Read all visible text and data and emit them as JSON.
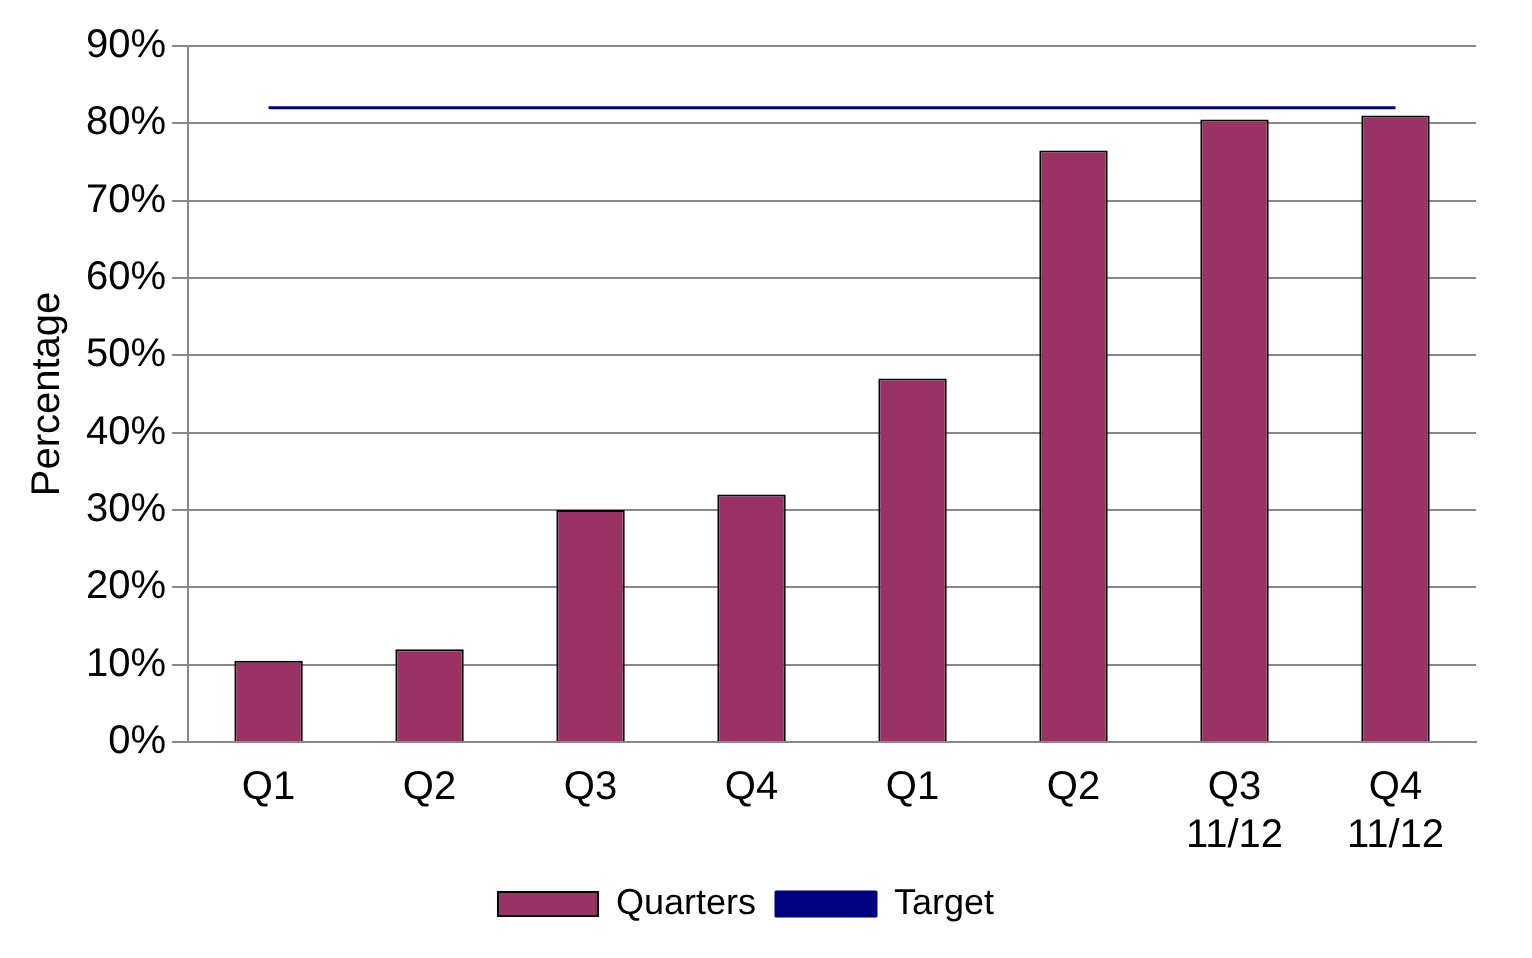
{
  "chart_data": {
    "type": "bar",
    "ylabel": "Percentage",
    "categories": [
      "Q1",
      "Q2",
      "Q3",
      "Q4",
      "Q1",
      "Q2",
      "Q3 11/12",
      "Q4 11/12"
    ],
    "series": [
      {
        "name": "Quarters",
        "color": "#993366",
        "values": [
          10.5,
          12,
          30,
          32,
          47,
          76.5,
          80.5,
          81
        ]
      },
      {
        "name": "Target",
        "type": "line",
        "color": "#000080",
        "values": [
          82,
          82,
          82,
          82,
          82,
          82,
          82,
          82
        ]
      }
    ],
    "ylim": [
      0,
      90
    ],
    "yticks": [
      {
        "value": 0,
        "label": "0%"
      },
      {
        "value": 10,
        "label": "10%"
      },
      {
        "value": 20,
        "label": "20%"
      },
      {
        "value": 30,
        "label": "30%"
      },
      {
        "value": 40,
        "label": "40%"
      },
      {
        "value": 50,
        "label": "50%"
      },
      {
        "value": 60,
        "label": "60%"
      },
      {
        "value": 70,
        "label": "70%"
      },
      {
        "value": 80,
        "label": "80%"
      },
      {
        "value": 90,
        "label": "90%"
      }
    ],
    "grid": "y",
    "legend": "bottom",
    "marker": "none"
  }
}
